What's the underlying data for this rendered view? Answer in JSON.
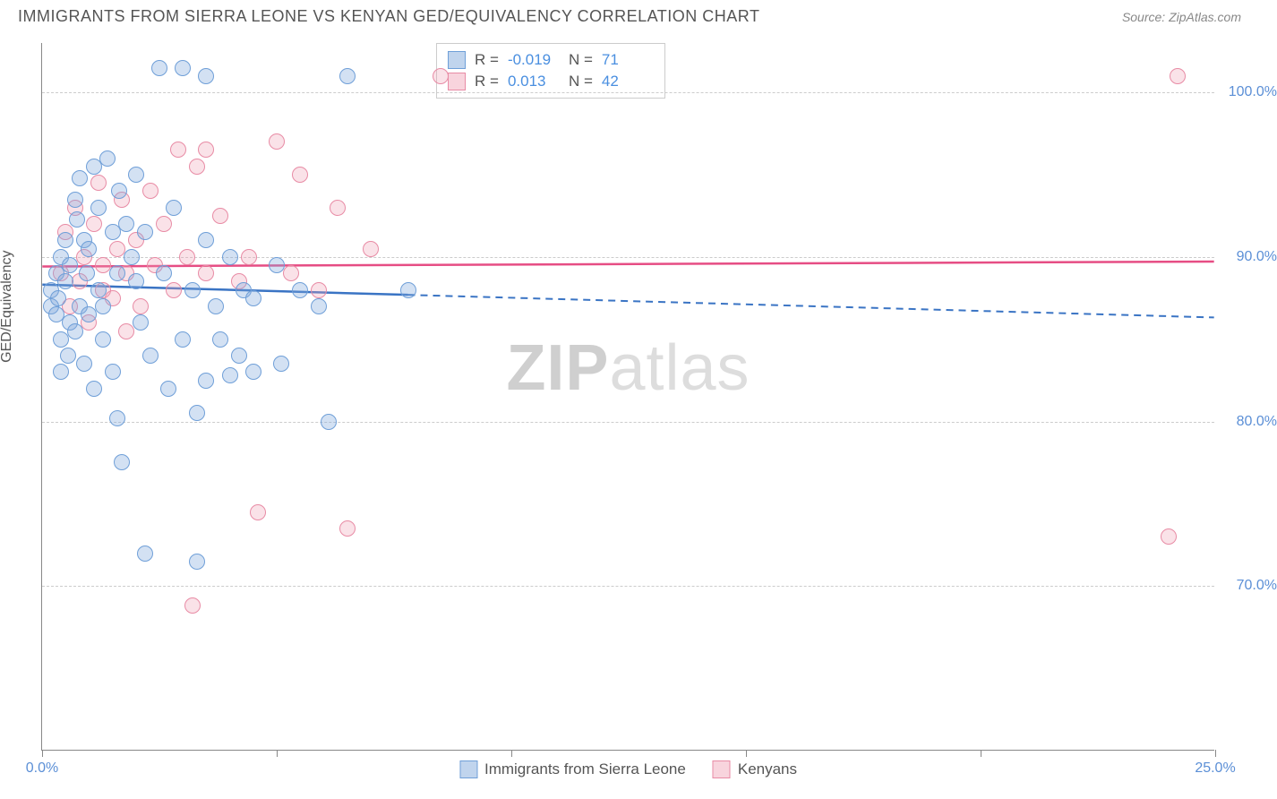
{
  "header": {
    "title": "IMMIGRANTS FROM SIERRA LEONE VS KENYAN GED/EQUIVALENCY CORRELATION CHART",
    "source": "Source: ZipAtlas.com"
  },
  "chart": {
    "type": "scatter",
    "ylabel": "GED/Equivalency",
    "watermark_bold": "ZIP",
    "watermark_light": "atlas",
    "x_domain": [
      0,
      25
    ],
    "y_domain": [
      60,
      103
    ],
    "y_gridlines": [
      70,
      80,
      90,
      100
    ],
    "y_tick_labels": [
      "70.0%",
      "80.0%",
      "90.0%",
      "100.0%"
    ],
    "x_ticks": [
      0,
      5,
      10,
      15,
      20,
      25
    ],
    "x_tick_labels": {
      "0": "0.0%",
      "25": "25.0%"
    },
    "colors": {
      "blue_fill": "rgba(130,170,220,0.35)",
      "blue_stroke": "#6f9fd8",
      "pink_fill": "rgba(240,160,180,0.3)",
      "pink_stroke": "#e88ba5",
      "trend_blue": "#3a74c4",
      "trend_pink": "#e64d84",
      "grid": "#cccccc",
      "axis": "#888888",
      "tick_text": "#5b8fd6"
    },
    "stat_box": {
      "rows": [
        {
          "swatch": "blue",
          "r_label": "R =",
          "r_val": "-0.019",
          "n_label": "N =",
          "n_val": "71"
        },
        {
          "swatch": "pink",
          "r_label": "R =",
          "r_val": "0.013",
          "n_label": "N =",
          "n_val": "42"
        }
      ]
    },
    "bottom_legend": [
      {
        "swatch": "blue",
        "label": "Immigrants from Sierra Leone"
      },
      {
        "swatch": "pink",
        "label": "Kenyans"
      }
    ],
    "trend_lines": {
      "blue": {
        "x1": 0,
        "y1": 88.3,
        "x2": 25,
        "y2": 86.3,
        "solid_until_x": 7.8
      },
      "pink": {
        "x1": 0,
        "y1": 89.4,
        "x2": 25,
        "y2": 89.7,
        "solid_until_x": 25
      }
    },
    "blue_points": [
      [
        0.2,
        88
      ],
      [
        0.2,
        87
      ],
      [
        0.3,
        86.5
      ],
      [
        0.3,
        89
      ],
      [
        0.35,
        87.5
      ],
      [
        0.4,
        90
      ],
      [
        0.4,
        85
      ],
      [
        0.4,
        83
      ],
      [
        0.5,
        88.5
      ],
      [
        0.5,
        91
      ],
      [
        0.55,
        84
      ],
      [
        0.6,
        89.5
      ],
      [
        0.6,
        86
      ],
      [
        0.7,
        93.5
      ],
      [
        0.7,
        85.5
      ],
      [
        0.75,
        92.3
      ],
      [
        0.8,
        87
      ],
      [
        0.8,
        94.8
      ],
      [
        0.9,
        91
      ],
      [
        0.9,
        83.5
      ],
      [
        0.95,
        89
      ],
      [
        1.0,
        90.5
      ],
      [
        1.0,
        86.5
      ],
      [
        1.1,
        95.5
      ],
      [
        1.1,
        82
      ],
      [
        1.2,
        93
      ],
      [
        1.2,
        88
      ],
      [
        1.3,
        87
      ],
      [
        1.3,
        85
      ],
      [
        1.4,
        96
      ],
      [
        1.5,
        91.5
      ],
      [
        1.5,
        83
      ],
      [
        1.6,
        89
      ],
      [
        1.6,
        80.2
      ],
      [
        1.65,
        94
      ],
      [
        1.7,
        77.5
      ],
      [
        1.8,
        92
      ],
      [
        1.9,
        90
      ],
      [
        2.0,
        95
      ],
      [
        2.0,
        88.5
      ],
      [
        2.1,
        86
      ],
      [
        2.2,
        72
      ],
      [
        2.2,
        91.5
      ],
      [
        2.3,
        84
      ],
      [
        2.5,
        101.5
      ],
      [
        2.6,
        89
      ],
      [
        2.7,
        82
      ],
      [
        2.8,
        93
      ],
      [
        3.0,
        85
      ],
      [
        3.0,
        101.5
      ],
      [
        3.2,
        88
      ],
      [
        3.3,
        80.5
      ],
      [
        3.3,
        71.5
      ],
      [
        3.5,
        91
      ],
      [
        3.5,
        82.5
      ],
      [
        3.5,
        101
      ],
      [
        3.7,
        87
      ],
      [
        3.8,
        85
      ],
      [
        4.0,
        90
      ],
      [
        4.0,
        82.8
      ],
      [
        4.2,
        84
      ],
      [
        4.3,
        88
      ],
      [
        4.5,
        83
      ],
      [
        4.5,
        87.5
      ],
      [
        5.0,
        89.5
      ],
      [
        5.1,
        83.5
      ],
      [
        5.5,
        88
      ],
      [
        5.9,
        87
      ],
      [
        6.1,
        80
      ],
      [
        6.5,
        101
      ],
      [
        7.8,
        88
      ]
    ],
    "pink_points": [
      [
        0.4,
        89
      ],
      [
        0.5,
        91.5
      ],
      [
        0.6,
        87
      ],
      [
        0.7,
        93
      ],
      [
        0.8,
        88.5
      ],
      [
        0.9,
        90
      ],
      [
        1.0,
        86
      ],
      [
        1.1,
        92
      ],
      [
        1.2,
        94.5
      ],
      [
        1.3,
        88
      ],
      [
        1.3,
        89.5
      ],
      [
        1.5,
        87.5
      ],
      [
        1.6,
        90.5
      ],
      [
        1.7,
        93.5
      ],
      [
        1.8,
        89
      ],
      [
        1.8,
        85.5
      ],
      [
        2.0,
        91
      ],
      [
        2.1,
        87
      ],
      [
        2.3,
        94
      ],
      [
        2.4,
        89.5
      ],
      [
        2.6,
        92
      ],
      [
        2.8,
        88
      ],
      [
        2.9,
        96.5
      ],
      [
        3.1,
        90
      ],
      [
        3.2,
        68.8
      ],
      [
        3.3,
        95.5
      ],
      [
        3.5,
        89
      ],
      [
        3.5,
        96.5
      ],
      [
        3.8,
        92.5
      ],
      [
        4.2,
        88.5
      ],
      [
        4.4,
        90
      ],
      [
        4.6,
        74.5
      ],
      [
        5.0,
        97
      ],
      [
        5.3,
        89
      ],
      [
        5.5,
        95
      ],
      [
        5.9,
        88
      ],
      [
        6.3,
        93
      ],
      [
        6.5,
        73.5
      ],
      [
        7.0,
        90.5
      ],
      [
        8.5,
        101
      ],
      [
        24.0,
        73
      ],
      [
        24.2,
        101
      ]
    ]
  }
}
